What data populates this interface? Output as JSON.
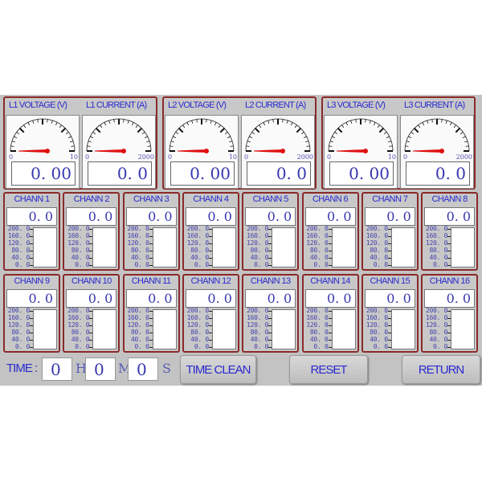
{
  "gauges": [
    {
      "voltage_label": "L1 VOLTAGE (V)",
      "current_label": "L1 CURRENT (A)",
      "voltage_min": "0",
      "voltage_max": "10",
      "current_min": "0",
      "current_max": "2000",
      "voltage_value": "0. 00",
      "current_value": "0. 0"
    },
    {
      "voltage_label": "L2 VOLTAGE (V)",
      "current_label": "L2 CURRENT (A)",
      "voltage_min": "0",
      "voltage_max": "10",
      "current_min": "0",
      "current_max": "2000",
      "voltage_value": "0. 00",
      "current_value": "0. 0"
    },
    {
      "voltage_label": "L3 VOLTAGE (V)",
      "current_label": "L3 CURRENT (A)",
      "voltage_min": "0",
      "voltage_max": "10",
      "current_min": "0",
      "current_max": "2000",
      "voltage_value": "0. 00",
      "current_value": "0. 0"
    }
  ],
  "channels": [
    {
      "label": "CHANN 1",
      "value": "0. 0"
    },
    {
      "label": "CHANN 2",
      "value": "0. 0"
    },
    {
      "label": "CHANN 3",
      "value": "0. 0"
    },
    {
      "label": "CHANN 4",
      "value": "0. 0"
    },
    {
      "label": "CHANN 5",
      "value": "0. 0"
    },
    {
      "label": "CHANN 6",
      "value": "0. 0"
    },
    {
      "label": "CHANN 7",
      "value": "0. 0"
    },
    {
      "label": "CHANN 8",
      "value": "0. 0"
    },
    {
      "label": "CHANN 9",
      "value": "0. 0"
    },
    {
      "label": "CHANN 10",
      "value": "0. 0"
    },
    {
      "label": "CHANN 11",
      "value": "0. 0"
    },
    {
      "label": "CHANN 12",
      "value": "0. 0"
    },
    {
      "label": "CHANN 13",
      "value": "0. 0"
    },
    {
      "label": "CHANN 14",
      "value": "0. 0"
    },
    {
      "label": "CHANN 15",
      "value": "0. 0"
    },
    {
      "label": "CHANN 16",
      "value": "0. 0"
    }
  ],
  "channel_axis": [
    "200. 0",
    "160. 0",
    "120. 0",
    "80. 0",
    "40. 0",
    "0. 0"
  ],
  "bottom": {
    "time_label": "TIME :",
    "hours": "0",
    "hours_unit": "H",
    "minutes": "0",
    "minutes_unit": "M",
    "seconds": "0",
    "seconds_unit": "S",
    "time_clean": "TIME CLEAN",
    "reset": "RESET",
    "return": "RETURN"
  },
  "colors": {
    "border": "#8a2a2a",
    "label": "#2a2ad0",
    "needle": "#e01010",
    "background": "#c3c3c3"
  }
}
